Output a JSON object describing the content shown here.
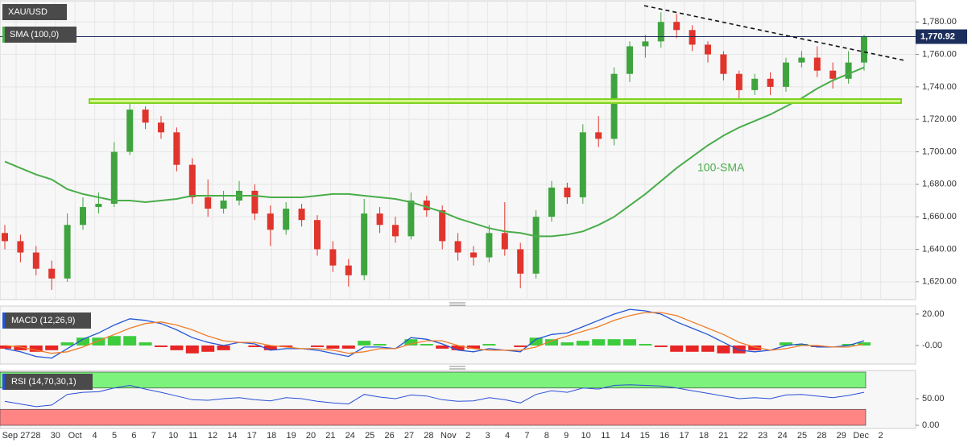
{
  "x_axis_labels": [
    "Sep 27",
    "28",
    "30",
    "Oct",
    "4",
    "5",
    "6",
    "7",
    "10",
    "11",
    "12",
    "14",
    "17",
    "18",
    "19",
    "20",
    "21",
    "24",
    "25",
    "26",
    "27",
    "28",
    "Nov",
    "2",
    "3",
    "4",
    "7",
    "8",
    "9",
    "10",
    "11",
    "14",
    "15",
    "16",
    "17",
    "18",
    "21",
    "22",
    "23",
    "24",
    "25",
    "28",
    "29",
    "Dec",
    "2"
  ],
  "chart_data": [
    {
      "type": "candlestick",
      "title": "XAU/USD",
      "indicator": "SMA (100,0)",
      "annotation": "100-SMA",
      "up_color": "#3fa43f",
      "down_color": "#e0342c",
      "open": [
        1650,
        1645,
        1638,
        1628,
        1622,
        1655,
        1666,
        1668,
        1700,
        1726,
        1718,
        1712,
        1692,
        1672,
        1665,
        1670,
        1676,
        1662,
        1652,
        1665,
        1658,
        1640,
        1630,
        1624,
        1662,
        1655,
        1648,
        1670,
        1664,
        1645,
        1638,
        1635,
        1650,
        1640,
        1625,
        1660,
        1678,
        1672,
        1712,
        1708,
        1748,
        1765,
        1768,
        1780,
        1775,
        1766,
        1760,
        1748,
        1738,
        1745,
        1740,
        1755,
        1758,
        1750,
        1745,
        1755
      ],
      "high": [
        1655,
        1649,
        1642,
        1633,
        1662,
        1672,
        1675,
        1706,
        1730,
        1728,
        1722,
        1715,
        1696,
        1683,
        1676,
        1682,
        1680,
        1667,
        1669,
        1668,
        1661,
        1645,
        1634,
        1671,
        1666,
        1660,
        1675,
        1673,
        1667,
        1650,
        1642,
        1655,
        1669,
        1644,
        1664,
        1682,
        1681,
        1717,
        1722,
        1752,
        1768,
        1772,
        1786,
        1785,
        1778,
        1768,
        1762,
        1750,
        1748,
        1749,
        1758,
        1762,
        1765,
        1755,
        1762,
        1772
      ],
      "low": [
        1640,
        1632,
        1624,
        1615,
        1620,
        1652,
        1662,
        1666,
        1698,
        1714,
        1708,
        1688,
        1668,
        1660,
        1662,
        1667,
        1658,
        1642,
        1649,
        1654,
        1636,
        1626,
        1617,
        1621,
        1650,
        1644,
        1646,
        1660,
        1640,
        1633,
        1630,
        1632,
        1636,
        1616,
        1622,
        1657,
        1668,
        1668,
        1703,
        1704,
        1743,
        1758,
        1764,
        1770,
        1762,
        1755,
        1744,
        1732,
        1735,
        1735,
        1737,
        1752,
        1746,
        1739,
        1742,
        1750
      ],
      "close": [
        1645,
        1638,
        1628,
        1622,
        1655,
        1666,
        1668,
        1700,
        1726,
        1718,
        1712,
        1692,
        1672,
        1665,
        1670,
        1676,
        1662,
        1652,
        1665,
        1658,
        1640,
        1630,
        1624,
        1662,
        1655,
        1648,
        1670,
        1664,
        1645,
        1638,
        1635,
        1650,
        1640,
        1625,
        1660,
        1678,
        1672,
        1712,
        1708,
        1748,
        1765,
        1768,
        1780,
        1775,
        1766,
        1760,
        1748,
        1738,
        1745,
        1740,
        1755,
        1758,
        1750,
        1745,
        1755,
        1771
      ],
      "sma": {
        "color": "#4aad4a",
        "values": [
          1694,
          1690,
          1686,
          1683,
          1677,
          1674,
          1672,
          1670,
          1670,
          1669,
          1670,
          1671,
          1673,
          1673,
          1673,
          1673,
          1673,
          1672,
          1672,
          1672,
          1673,
          1674,
          1674,
          1673,
          1672,
          1671,
          1669,
          1666,
          1663,
          1659,
          1656,
          1653,
          1651,
          1650,
          1648,
          1648,
          1649,
          1651,
          1655,
          1660,
          1667,
          1674,
          1682,
          1690,
          1697,
          1704,
          1710,
          1715,
          1719,
          1723,
          1728,
          1733,
          1739,
          1744,
          1748,
          1752
        ]
      },
      "last_price": {
        "value": 1770.92,
        "label": "1,770.92",
        "color": "#1c2f5c"
      },
      "ylim": [
        1609,
        1793
      ],
      "yticks": [
        {
          "value": 1620,
          "label": "1,620.00"
        },
        {
          "value": 1640,
          "label": "1,640.00"
        },
        {
          "value": 1660,
          "label": "1,660.00"
        },
        {
          "value": 1680,
          "label": "1,680.00"
        },
        {
          "value": 1700,
          "label": "1,700.00"
        },
        {
          "value": 1720,
          "label": "1,720.00"
        },
        {
          "value": 1740,
          "label": "1,740.00"
        },
        {
          "value": 1760,
          "label": "1,760.00"
        },
        {
          "value": 1780,
          "label": "1,780.00"
        }
      ],
      "grid": true
    },
    {
      "type": "macd",
      "title": "MACD (12,26,9)",
      "series": [
        {
          "color": "#2256d6",
          "values": [
            -2,
            -4,
            -7,
            -8,
            -2,
            4,
            8,
            13,
            17,
            16,
            14,
            10,
            5,
            2,
            0,
            2,
            1,
            -3,
            -2,
            -2,
            -3,
            -5,
            -7,
            -1,
            -1,
            -2,
            5,
            4,
            1,
            -3,
            -4,
            -2,
            -3,
            -4,
            4,
            7,
            8,
            12,
            16,
            20,
            23,
            22,
            20,
            15,
            11,
            7,
            2,
            -3,
            -4,
            -3,
            0,
            1,
            -1,
            -1,
            0,
            3
          ]
        },
        {
          "color": "#f07d2a",
          "values": [
            0,
            -1,
            -3,
            -5,
            -4,
            -1,
            3,
            7,
            11,
            14,
            15,
            13,
            10,
            6,
            3,
            2,
            2,
            0,
            -1,
            -2,
            -2,
            -3,
            -5,
            -4,
            -2,
            -2,
            1,
            3,
            3,
            0,
            -2,
            -3,
            -3,
            -3,
            -1,
            3,
            6,
            9,
            12,
            16,
            19,
            21,
            21,
            19,
            15,
            11,
            7,
            2,
            -1,
            -3,
            -2,
            0,
            0,
            -1,
            -1,
            1
          ]
        }
      ],
      "histogram": {
        "up_color": "#3dcc3d",
        "down_color": "#e82424",
        "values": [
          -2,
          -3,
          -4,
          -3,
          2,
          5,
          5,
          6,
          6,
          2,
          -1,
          -3,
          -5,
          -4,
          -3,
          0,
          -1,
          -3,
          -1,
          0,
          -1,
          -2,
          -2,
          3,
          1,
          0,
          4,
          1,
          -2,
          -3,
          -2,
          1,
          0,
          -1,
          5,
          4,
          2,
          3,
          4,
          4,
          4,
          1,
          -1,
          -4,
          -4,
          -4,
          -5,
          -5,
          -3,
          0,
          2,
          1,
          -1,
          0,
          1,
          2
        ]
      },
      "ylim": [
        -11.8,
        25.1
      ],
      "yticks": [
        {
          "value": 20,
          "label": "20.00"
        },
        {
          "value": 0,
          "label": "-0.00"
        }
      ]
    },
    {
      "type": "rsi",
      "title": "RSI (14,70,30,1)",
      "color": "#2a4fd6",
      "values": [
        45,
        40,
        35,
        38,
        58,
        62,
        63,
        70,
        75,
        68,
        62,
        55,
        48,
        47,
        50,
        52,
        48,
        46,
        52,
        50,
        45,
        42,
        40,
        58,
        53,
        50,
        57,
        55,
        48,
        45,
        46,
        52,
        48,
        42,
        58,
        65,
        62,
        70,
        68,
        75,
        76,
        75,
        74,
        70,
        65,
        60,
        55,
        50,
        52,
        50,
        57,
        58,
        55,
        52,
        56,
        62
      ],
      "bands": [
        {
          "from": 70,
          "to": 100,
          "color": "#7df27d"
        },
        {
          "from": 0,
          "to": 30,
          "color": "#ff8585"
        }
      ],
      "ylim": [
        -6,
        103
      ],
      "yticks": [
        {
          "value": 50,
          "label": "50.00"
        },
        {
          "value": 0,
          "label": "0.00"
        }
      ]
    }
  ]
}
